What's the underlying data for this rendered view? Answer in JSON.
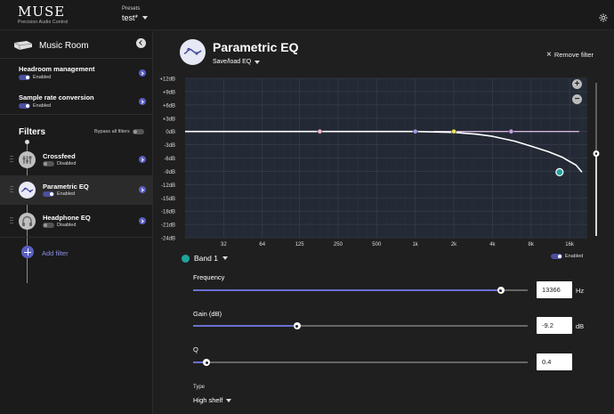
{
  "app": {
    "logo": "MUSE",
    "tagline": "Precision Audio Control"
  },
  "presets": {
    "label": "Presets",
    "value": "test*"
  },
  "sidebar": {
    "room_name": "Music Room",
    "settings": [
      {
        "title": "Headroom management",
        "status": "Enabled"
      },
      {
        "title": "Sample rate conversion",
        "status": "Enabled"
      }
    ],
    "filters_title": "Filters",
    "bypass_label": "Bypass all filters",
    "filters": [
      {
        "name": "Crossfeed",
        "status": "Disabled",
        "enabled": false
      },
      {
        "name": "Parametric EQ",
        "status": "Enabled",
        "enabled": true
      },
      {
        "name": "Headphone EQ",
        "status": "Disabled",
        "enabled": false
      }
    ],
    "add_filter": "Add filter"
  },
  "main": {
    "title": "Parametric EQ",
    "save_load": "Save/load EQ",
    "remove_filter": "Remove filter",
    "band": {
      "name": "Band 1",
      "status": "Enabled",
      "color": "#1fa39b"
    },
    "params": {
      "frequency": {
        "label": "Frequency",
        "value": "13366",
        "unit": "Hz",
        "fraction": 0.92
      },
      "gain": {
        "label": "Gain (dB)",
        "value": "-9.2",
        "unit": "dB",
        "fraction": 0.31
      },
      "q": {
        "label": "Q",
        "value": "0.4",
        "fraction": 0.04
      }
    },
    "type": {
      "label": "Type",
      "value": "High shelf"
    }
  },
  "chart_data": {
    "type": "line",
    "y_ticks": [
      "+12dB",
      "+9dB",
      "+6dB",
      "+3dB",
      "0dB",
      "-3dB",
      "-6dB",
      "-9dB",
      "-12dB",
      "-15dB",
      "-18dB",
      "-21dB",
      "-24dB"
    ],
    "x_ticks": [
      "32",
      "64",
      "125",
      "250",
      "500",
      "1k",
      "2k",
      "4k",
      "8k",
      "16k"
    ],
    "ylim": [
      -24,
      12
    ],
    "xlim_hz": [
      16,
      22000
    ],
    "grid": true,
    "response_curve": [
      {
        "hz": 16,
        "db": 0
      },
      {
        "hz": 500,
        "db": 0
      },
      {
        "hz": 1000,
        "db": 0
      },
      {
        "hz": 2000,
        "db": -0.2
      },
      {
        "hz": 3000,
        "db": -0.6
      },
      {
        "hz": 4000,
        "db": -1.1
      },
      {
        "hz": 6000,
        "db": -2.2
      },
      {
        "hz": 8000,
        "db": -3.3
      },
      {
        "hz": 11000,
        "db": -4.6
      },
      {
        "hz": 14000,
        "db": -5.8
      },
      {
        "hz": 18000,
        "db": -7.6
      },
      {
        "hz": 20000,
        "db": -9.2
      }
    ],
    "band_points": [
      {
        "name": "Band 2",
        "hz": 180,
        "db": 0,
        "color": "#f3b8c8"
      },
      {
        "name": "Band 3",
        "hz": 1000,
        "db": 0,
        "color": "#9b9ee8"
      },
      {
        "name": "Band 4",
        "hz": 2000,
        "db": 0,
        "color": "#f2e35a"
      },
      {
        "name": "Band 5",
        "hz": 5600,
        "db": 0,
        "color": "#c79ee8"
      },
      {
        "name": "Band 1",
        "hz": 13366,
        "db": -9.2,
        "color": "#1fa39b"
      }
    ],
    "band_tint": "#d7b5dc",
    "gain_slider_level_db": -5
  }
}
